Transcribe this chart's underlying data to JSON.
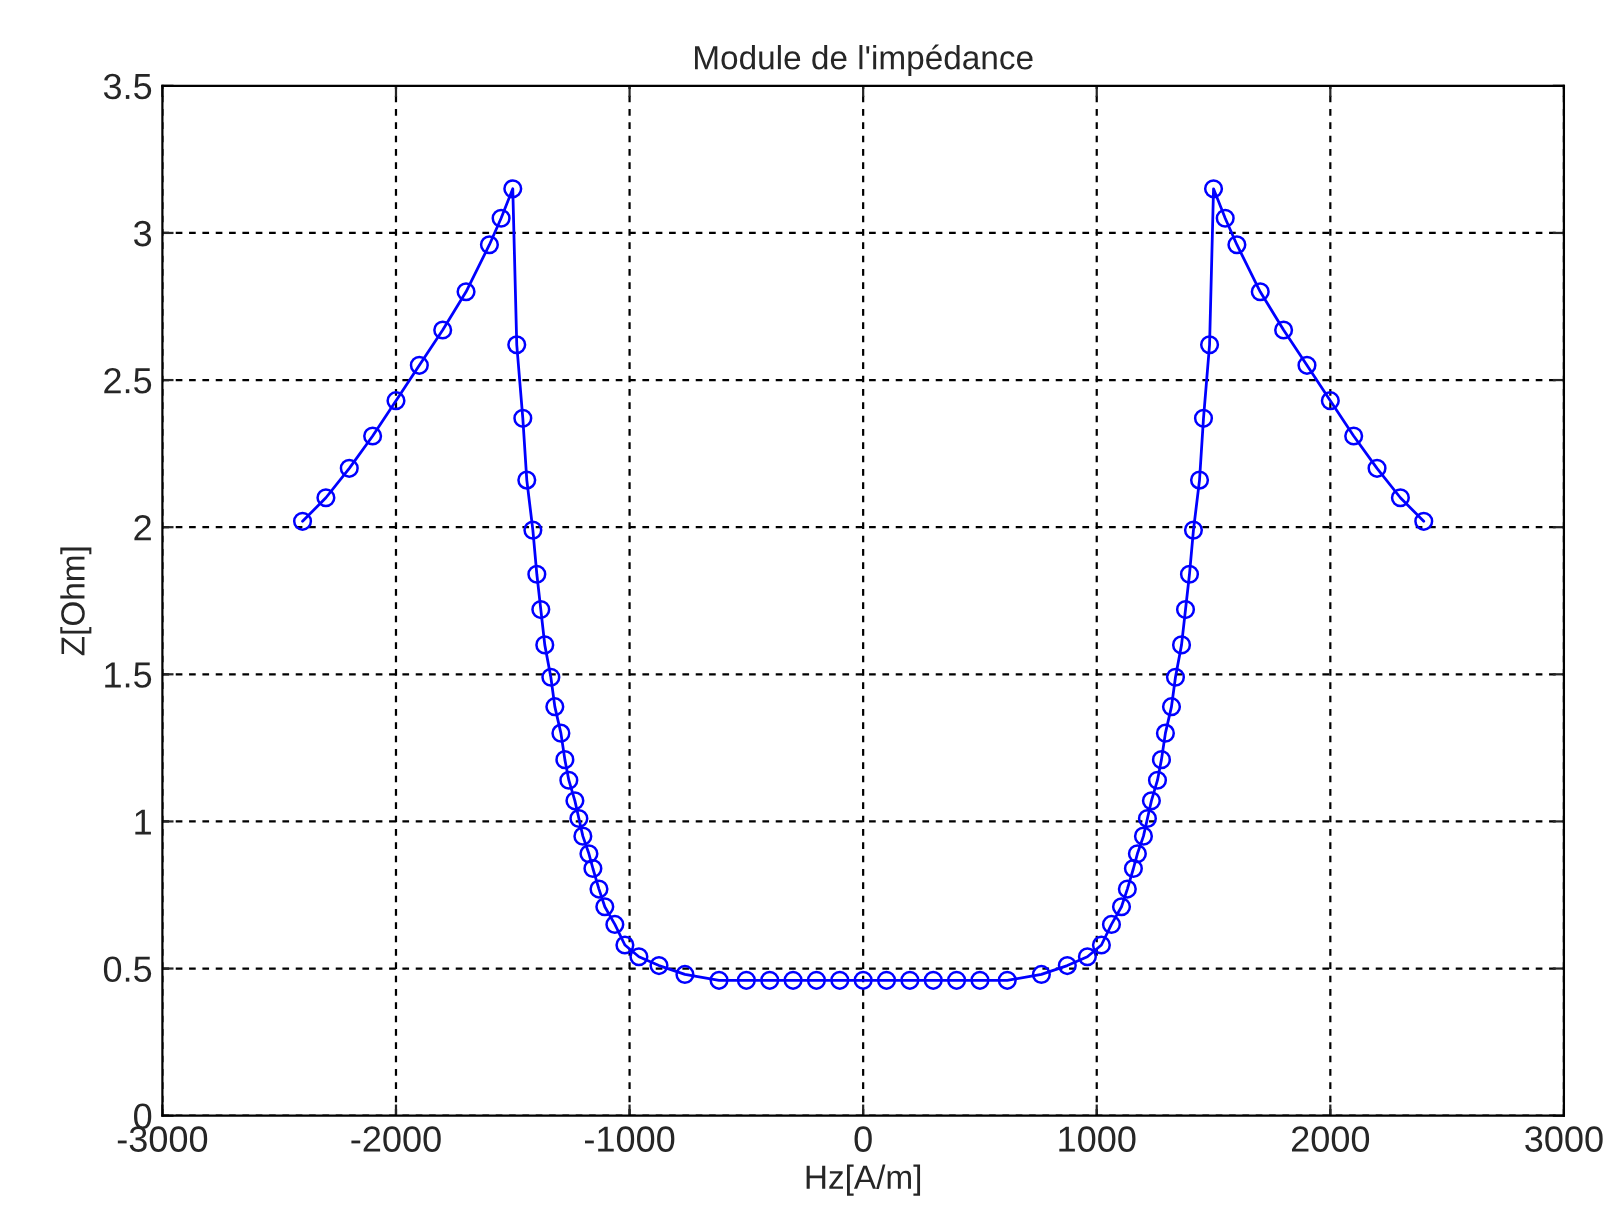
{
  "chart_data": {
    "type": "line",
    "title": "Module de l'impédance",
    "xlabel": "Hz[A/m]",
    "ylabel": "Z[Ohm]",
    "x": [
      -2400,
      -2300,
      -2200,
      -2100,
      -2000,
      -1900,
      -1800,
      -1700,
      -1600,
      -1550,
      -1500,
      -1483,
      -1457,
      -1440,
      -1414,
      -1397,
      -1380,
      -1363,
      -1337,
      -1320,
      -1294,
      -1277,
      -1260,
      -1234,
      -1217,
      -1200,
      -1174,
      -1157,
      -1131,
      -1106,
      -1063,
      -1020,
      -960,
      -874,
      -763,
      -617,
      -500,
      -400,
      -300,
      -200,
      -100,
      0,
      100,
      200,
      300,
      400,
      500,
      617,
      763,
      874,
      960,
      1020,
      1063,
      1106,
      1131,
      1157,
      1174,
      1200,
      1217,
      1234,
      1260,
      1277,
      1294,
      1320,
      1337,
      1363,
      1380,
      1397,
      1414,
      1440,
      1457,
      1483,
      1500,
      1550,
      1600,
      1700,
      1800,
      1900,
      2000,
      2100,
      2200,
      2300,
      2400
    ],
    "series": [
      {
        "color": "#0000ff",
        "marker": "circle",
        "line_style": "solid",
        "values": [
          2.02,
          2.1,
          2.2,
          2.31,
          2.43,
          2.55,
          2.67,
          2.8,
          2.96,
          3.05,
          3.15,
          2.62,
          2.37,
          2.16,
          1.99,
          1.84,
          1.72,
          1.6,
          1.49,
          1.39,
          1.3,
          1.21,
          1.14,
          1.07,
          1.01,
          0.95,
          0.89,
          0.84,
          0.77,
          0.71,
          0.65,
          0.58,
          0.54,
          0.51,
          0.48,
          0.46,
          0.46,
          0.46,
          0.46,
          0.46,
          0.46,
          0.46,
          0.46,
          0.46,
          0.46,
          0.46,
          0.46,
          0.46,
          0.48,
          0.51,
          0.54,
          0.58,
          0.65,
          0.71,
          0.77,
          0.84,
          0.89,
          0.95,
          1.01,
          1.07,
          1.14,
          1.21,
          1.3,
          1.39,
          1.49,
          1.6,
          1.72,
          1.84,
          1.99,
          2.16,
          2.37,
          2.62,
          3.15,
          3.05,
          2.96,
          2.8,
          2.67,
          2.55,
          2.43,
          2.31,
          2.2,
          2.1,
          2.02
        ]
      }
    ],
    "xlim": [
      -3000,
      3000
    ],
    "xticks": [
      -3000,
      -2000,
      -1000,
      0,
      1000,
      2000,
      3000
    ],
    "ylim": [
      0,
      3.5
    ],
    "yticks": [
      0,
      0.5,
      1,
      1.5,
      2,
      2.5,
      3,
      3.5
    ],
    "grid": true
  }
}
